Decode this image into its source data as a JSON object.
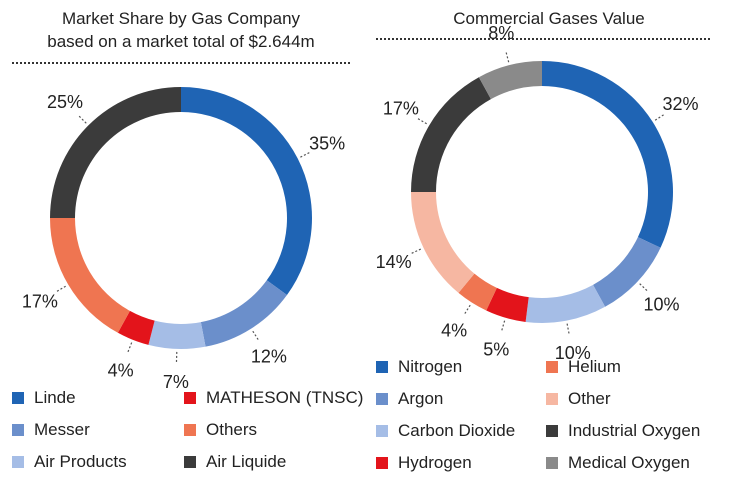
{
  "chart_data": [
    {
      "type": "pie",
      "title": "Market Share by Gas Company",
      "subtitle": "based on a market total of $2.644m",
      "categories": [
        "Linde",
        "Messer",
        "Air Products",
        "MATHESON (TNSC)",
        "Others",
        "Air Liquide"
      ],
      "values": [
        35,
        12,
        7,
        4,
        17,
        25
      ],
      "labels": [
        "35%",
        "12%",
        "7%",
        "4%",
        "17%",
        "25%"
      ],
      "colors": [
        "#1f64b4",
        "#6b8fcb",
        "#a5bde6",
        "#e3141b",
        "#ef7551",
        "#3b3b3b"
      ],
      "donut": true,
      "legend_position": "bottom"
    },
    {
      "type": "pie",
      "title": "Commercial Gases Value",
      "categories": [
        "Nitrogen",
        "Argon",
        "Carbon Dioxide",
        "Hydrogen",
        "Helium",
        "Other",
        "Industrial Oxygen",
        "Medical Oxygen"
      ],
      "values": [
        32,
        10,
        10,
        5,
        4,
        14,
        17,
        8
      ],
      "labels": [
        "32%",
        "10%",
        "10%",
        "5%",
        "4%",
        "14%",
        "17%",
        "8%"
      ],
      "colors": [
        "#1f64b4",
        "#6b8fcb",
        "#a5bde6",
        "#e3141b",
        "#ef7551",
        "#f6b7a2",
        "#3b3b3b",
        "#8a8a8a"
      ],
      "donut": true,
      "legend_position": "bottom"
    }
  ]
}
